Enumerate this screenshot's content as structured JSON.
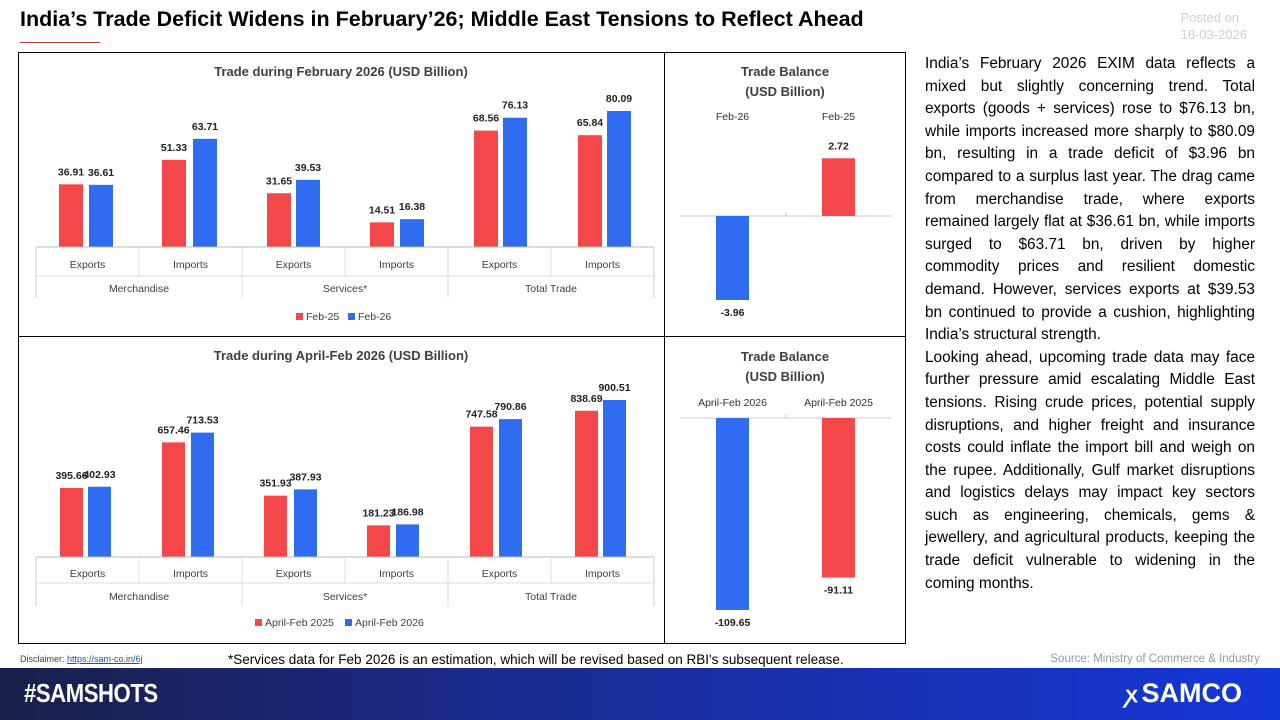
{
  "header": {
    "title": "India’s Trade Deficit Widens in February’26; Middle East Tensions to Reflect Ahead",
    "posted_label": "Posted on",
    "posted_date": "18-03-2026"
  },
  "colors": {
    "red": "#f4474a",
    "blue": "#2f6cf0"
  },
  "chart_data": [
    {
      "type": "bar",
      "title": "Trade during February 2026 (USD Billion)",
      "groups": [
        "Merchandise",
        "Services*",
        "Total Trade"
      ],
      "categories": [
        "Exports",
        "Imports",
        "Exports",
        "Imports",
        "Exports",
        "Imports"
      ],
      "series": [
        {
          "name": "Feb-25",
          "values": [
            36.91,
            51.33,
            31.65,
            14.51,
            68.56,
            65.84
          ]
        },
        {
          "name": "Feb-26",
          "values": [
            36.61,
            63.71,
            39.53,
            16.38,
            76.13,
            80.09
          ]
        }
      ],
      "legend": "bottom"
    },
    {
      "type": "bar",
      "title": "Trade Balance (USD Billion)",
      "title_lines": [
        "Trade Balance",
        "(USD Billion)"
      ],
      "categories": [
        "Feb-26",
        "Feb-25"
      ],
      "values": [
        -3.96,
        2.72
      ],
      "labels": [
        "-3.96",
        "2.72"
      ]
    },
    {
      "type": "bar",
      "title": "Trade during April-Feb 2026 (USD Billion)",
      "groups": [
        "Merchandise",
        "Services*",
        "Total Trade"
      ],
      "categories": [
        "Exports",
        "Imports",
        "Exports",
        "Imports",
        "Exports",
        "Imports"
      ],
      "series": [
        {
          "name": "April-Feb 2025",
          "values": [
            395.66,
            657.46,
            351.93,
            181.23,
            747.58,
            838.69
          ]
        },
        {
          "name": "April-Feb 2026",
          "values": [
            402.93,
            713.53,
            387.93,
            186.98,
            790.86,
            900.51
          ]
        }
      ],
      "legend": "bottom"
    },
    {
      "type": "bar",
      "title": "Trade Balance (USD Billion)",
      "title_lines": [
        "Trade Balance",
        "(USD Billion)"
      ],
      "categories": [
        "April-Feb 2026",
        "April-Feb 2025"
      ],
      "values": [
        -109.65,
        -91.11
      ],
      "labels": [
        "-109.65",
        "-91.11"
      ]
    }
  ],
  "commentary": [
    "India’s February 2026 EXIM data reflects a mixed but slightly concerning trend. Total exports (goods + services) rose to $76.13 bn, while imports increased more sharply to $80.09 bn, resulting in a trade deficit of $3.96 bn compared to a surplus last year. The drag came from merchandise trade, where exports remained largely flat at $36.61 bn, while imports surged to $63.71 bn, driven by higher commodity prices and resilient domestic demand. However, services exports at $39.53 bn continued to provide a cushion, highlighting India’s structural strength.",
    "Looking ahead, upcoming trade data may face further pressure amid escalating Middle East tensions. Rising crude prices, potential supply disruptions, and higher freight and insurance costs could inflate the import bill and weigh on the rupee. Additionally, Gulf market disruptions and logistics delays may impact key sectors such as engineering, chemicals, gems & jewellery, and agricultural products, keeping the trade deficit vulnerable to widening in the coming months."
  ],
  "footer": {
    "disclaimer_label": "Disclaimer:",
    "disclaimer_link": "https://sam-co.in/6j",
    "note": "*Services data for Feb 2026 is an estimation, which will be revised based on RBI's subsequent release.",
    "source": "Source: Ministry of Commerce & Industry",
    "hashtag": "#SAMSHOTS",
    "brand": "SAMCO"
  }
}
